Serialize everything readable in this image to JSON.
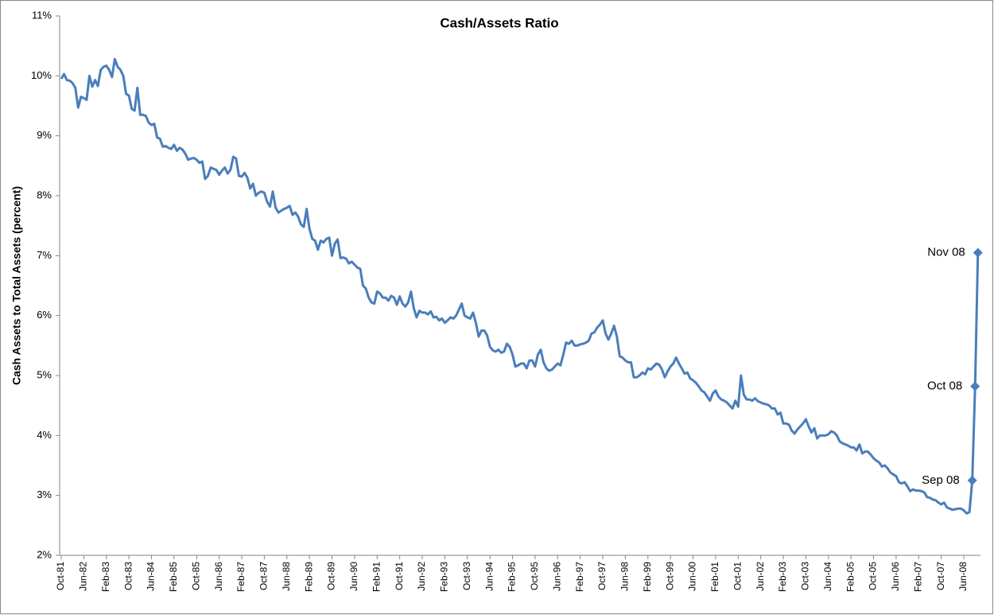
{
  "chart_data": {
    "type": "line",
    "title": "Cash/Assets Ratio",
    "y_label": "Cash Assets to Total Assets (percent)",
    "categories": [
      "Oct-81",
      null,
      null,
      null,
      null,
      null,
      null,
      null,
      "Jun-82",
      null,
      null,
      null,
      null,
      null,
      null,
      null,
      "Feb-83",
      null,
      null,
      null,
      null,
      null,
      null,
      null,
      "Oct-83",
      null,
      null,
      null,
      null,
      null,
      null,
      null,
      "Jun-84",
      null,
      null,
      null,
      null,
      null,
      null,
      null,
      "Feb-85",
      null,
      null,
      null,
      null,
      null,
      null,
      null,
      "Oct-85",
      null,
      null,
      null,
      null,
      null,
      null,
      null,
      "Jun-86",
      null,
      null,
      null,
      null,
      null,
      null,
      null,
      "Feb-87",
      null,
      null,
      null,
      null,
      null,
      null,
      null,
      "Oct-87",
      null,
      null,
      null,
      null,
      null,
      null,
      null,
      "Jun-88",
      null,
      null,
      null,
      null,
      null,
      null,
      null,
      "Feb-89",
      null,
      null,
      null,
      null,
      null,
      null,
      null,
      "Oct-89",
      null,
      null,
      null,
      null,
      null,
      null,
      null,
      "Jun-90",
      null,
      null,
      null,
      null,
      null,
      null,
      null,
      "Feb-91",
      null,
      null,
      null,
      null,
      null,
      null,
      null,
      "Oct-91",
      null,
      null,
      null,
      null,
      null,
      null,
      null,
      "Jun-92",
      null,
      null,
      null,
      null,
      null,
      null,
      null,
      "Feb-93",
      null,
      null,
      null,
      null,
      null,
      null,
      null,
      "Oct-93",
      null,
      null,
      null,
      null,
      null,
      null,
      null,
      "Jun-94",
      null,
      null,
      null,
      null,
      null,
      null,
      null,
      "Feb-95",
      null,
      null,
      null,
      null,
      null,
      null,
      null,
      "Oct-95",
      null,
      null,
      null,
      null,
      null,
      null,
      null,
      "Jun-96",
      null,
      null,
      null,
      null,
      null,
      null,
      null,
      "Feb-97",
      null,
      null,
      null,
      null,
      null,
      null,
      null,
      "Oct-97",
      null,
      null,
      null,
      null,
      null,
      null,
      null,
      "Jun-98",
      null,
      null,
      null,
      null,
      null,
      null,
      null,
      "Feb-99",
      null,
      null,
      null,
      null,
      null,
      null,
      null,
      "Oct-99",
      null,
      null,
      null,
      null,
      null,
      null,
      null,
      "Jun-00",
      null,
      null,
      null,
      null,
      null,
      null,
      null,
      "Feb-01",
      null,
      null,
      null,
      null,
      null,
      null,
      null,
      "Oct-01",
      null,
      null,
      null,
      null,
      null,
      null,
      null,
      "Jun-02",
      null,
      null,
      null,
      null,
      null,
      null,
      null,
      "Feb-03",
      null,
      null,
      null,
      null,
      null,
      null,
      null,
      "Oct-03",
      null,
      null,
      null,
      null,
      null,
      null,
      null,
      "Jun-04",
      null,
      null,
      null,
      null,
      null,
      null,
      null,
      "Feb-05",
      null,
      null,
      null,
      null,
      null,
      null,
      null,
      "Oct-05",
      null,
      null,
      null,
      null,
      null,
      null,
      null,
      "Jun-06",
      null,
      null,
      null,
      null,
      null,
      null,
      null,
      "Feb-07",
      null,
      null,
      null,
      null,
      null,
      null,
      null,
      "Oct-07",
      null,
      null,
      null,
      null,
      null,
      null,
      null,
      "Jun-08",
      null,
      null,
      null,
      null,
      null
    ],
    "series": [
      {
        "name": "Cash/Assets Ratio",
        "color": "#4a7ebb",
        "values": [
          9.95,
          10.03,
          9.93,
          9.92,
          9.88,
          9.8,
          9.47,
          9.65,
          9.63,
          9.6,
          10.0,
          9.82,
          9.93,
          9.83,
          10.1,
          10.15,
          10.17,
          10.1,
          9.98,
          10.28,
          10.15,
          10.1,
          10.0,
          9.7,
          9.67,
          9.45,
          9.42,
          9.8,
          9.35,
          9.35,
          9.33,
          9.22,
          9.18,
          9.2,
          8.97,
          8.95,
          8.82,
          8.83,
          8.8,
          8.78,
          8.85,
          8.75,
          8.8,
          8.77,
          8.7,
          8.6,
          8.62,
          8.63,
          8.6,
          8.55,
          8.57,
          8.28,
          8.33,
          8.47,
          8.45,
          8.43,
          8.35,
          8.42,
          8.47,
          8.37,
          8.43,
          8.65,
          8.62,
          8.33,
          8.32,
          8.38,
          8.3,
          8.12,
          8.2,
          8.0,
          8.05,
          8.07,
          8.05,
          7.9,
          7.82,
          8.07,
          7.8,
          7.72,
          7.75,
          7.78,
          7.8,
          7.83,
          7.68,
          7.72,
          7.65,
          7.52,
          7.48,
          7.78,
          7.45,
          7.28,
          7.25,
          7.1,
          7.25,
          7.22,
          7.28,
          7.3,
          7.0,
          7.2,
          7.27,
          6.96,
          6.97,
          6.95,
          6.87,
          6.9,
          6.85,
          6.8,
          6.78,
          6.5,
          6.45,
          6.3,
          6.22,
          6.2,
          6.4,
          6.37,
          6.3,
          6.3,
          6.25,
          6.33,
          6.3,
          6.18,
          6.32,
          6.2,
          6.15,
          6.22,
          6.4,
          6.12,
          5.97,
          6.08,
          6.05,
          6.05,
          6.02,
          6.07,
          5.97,
          5.98,
          5.92,
          5.95,
          5.88,
          5.92,
          5.97,
          5.95,
          6.0,
          6.1,
          6.2,
          6.0,
          5.97,
          5.95,
          6.05,
          5.88,
          5.65,
          5.75,
          5.75,
          5.67,
          5.48,
          5.42,
          5.4,
          5.43,
          5.38,
          5.4,
          5.53,
          5.48,
          5.35,
          5.15,
          5.17,
          5.2,
          5.2,
          5.12,
          5.25,
          5.25,
          5.15,
          5.35,
          5.43,
          5.22,
          5.12,
          5.08,
          5.1,
          5.15,
          5.2,
          5.17,
          5.35,
          5.55,
          5.53,
          5.58,
          5.5,
          5.5,
          5.52,
          5.53,
          5.55,
          5.58,
          5.7,
          5.72,
          5.8,
          5.85,
          5.92,
          5.7,
          5.6,
          5.7,
          5.83,
          5.65,
          5.32,
          5.3,
          5.25,
          5.22,
          5.22,
          4.97,
          4.97,
          5.0,
          5.05,
          5.02,
          5.12,
          5.1,
          5.15,
          5.2,
          5.18,
          5.1,
          4.97,
          5.07,
          5.15,
          5.2,
          5.3,
          5.2,
          5.12,
          5.03,
          5.05,
          4.95,
          4.92,
          4.88,
          4.82,
          4.75,
          4.72,
          4.65,
          4.58,
          4.7,
          4.75,
          4.65,
          4.6,
          4.58,
          4.55,
          4.5,
          4.45,
          4.58,
          4.48,
          5.0,
          4.68,
          4.6,
          4.6,
          4.58,
          4.62,
          4.57,
          4.55,
          4.53,
          4.52,
          4.5,
          4.45,
          4.45,
          4.35,
          4.38,
          4.2,
          4.2,
          4.18,
          4.08,
          4.03,
          4.1,
          4.15,
          4.2,
          4.27,
          4.15,
          4.05,
          4.12,
          3.95,
          4.0,
          4.0,
          4.0,
          4.02,
          4.07,
          4.05,
          4.0,
          3.9,
          3.87,
          3.85,
          3.83,
          3.8,
          3.8,
          3.75,
          3.85,
          3.7,
          3.73,
          3.73,
          3.68,
          3.62,
          3.58,
          3.55,
          3.48,
          3.5,
          3.45,
          3.38,
          3.35,
          3.32,
          3.22,
          3.2,
          3.22,
          3.15,
          3.07,
          3.1,
          3.08,
          3.08,
          3.07,
          3.05,
          2.97,
          2.96,
          2.93,
          2.92,
          2.88,
          2.85,
          2.88,
          2.8,
          2.78,
          2.76,
          2.77,
          2.78,
          2.78,
          2.75,
          2.7,
          2.72,
          3.25,
          4.82,
          7.05
        ]
      }
    ],
    "annotations": [
      "Sep 08",
      "Oct 08",
      "Nov 08"
    ],
    "ylim": [
      2,
      11
    ],
    "yticks": [
      {
        "value": 2,
        "label": "2%"
      },
      {
        "value": 3,
        "label": "3%"
      },
      {
        "value": 4,
        "label": "4%"
      },
      {
        "value": 5,
        "label": "5%"
      },
      {
        "value": 6,
        "label": "6%"
      },
      {
        "value": 7,
        "label": "7%"
      },
      {
        "value": 8,
        "label": "8%"
      },
      {
        "value": 9,
        "label": "9%"
      },
      {
        "value": 10,
        "label": "10%"
      },
      {
        "value": 11,
        "label": "11%"
      }
    ],
    "grid": false
  }
}
